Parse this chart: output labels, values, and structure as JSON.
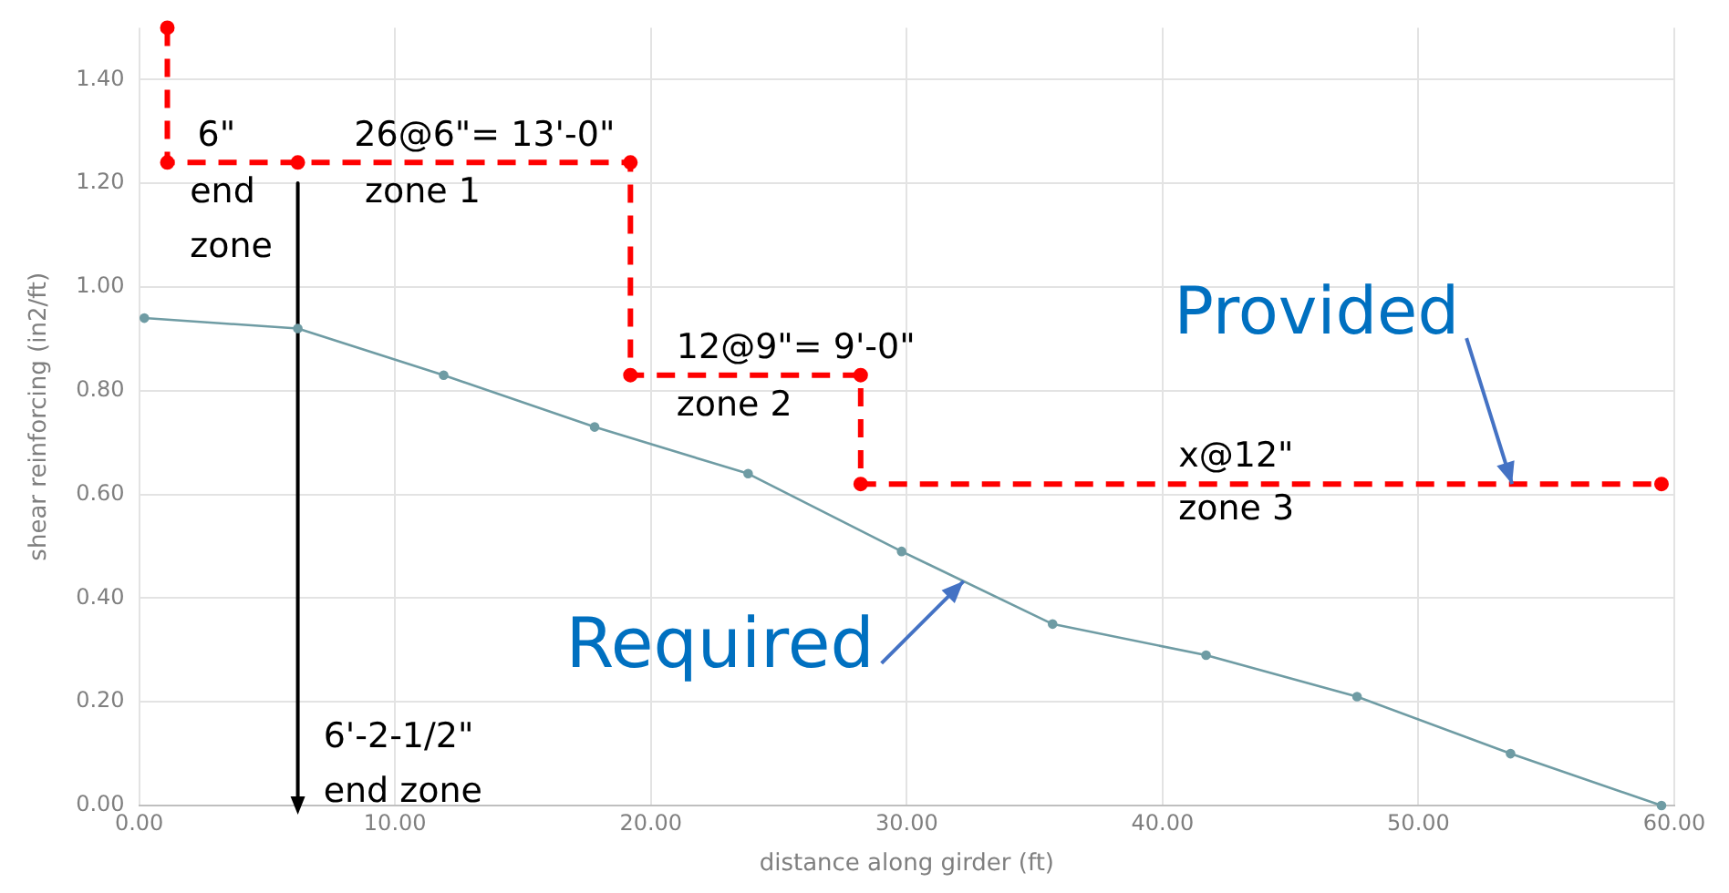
{
  "chart_data": {
    "type": "line",
    "xlabel": "distance along girder (ft)",
    "ylabel": "shear reinforcing (in2/ft)",
    "xlim": [
      0,
      60
    ],
    "xticks": [
      {
        "value": 0,
        "label": "0.00"
      },
      {
        "value": 10,
        "label": "10.00"
      },
      {
        "value": 20,
        "label": "20.00"
      },
      {
        "value": 30,
        "label": "30.00"
      },
      {
        "value": 40,
        "label": "40.00"
      },
      {
        "value": 50,
        "label": "50.00"
      },
      {
        "value": 60,
        "label": "60.00"
      }
    ],
    "ylim": [
      0,
      1.5
    ],
    "yticks": [
      {
        "value": 0,
        "label": "0.00"
      },
      {
        "value": 0.2,
        "label": "0.20"
      },
      {
        "value": 0.4,
        "label": "0.40"
      },
      {
        "value": 0.6,
        "label": "0.60"
      },
      {
        "value": 0.8,
        "label": "0.80"
      },
      {
        "value": 1,
        "label": "1.00"
      },
      {
        "value": 1.2,
        "label": "1.20"
      },
      {
        "value": 1.4,
        "label": "1.40"
      }
    ],
    "grid": true,
    "legend": false,
    "series": [
      {
        "name": "Required",
        "color": "#6f9ca4",
        "marker": "circle",
        "line_style": "solid",
        "x": [
          0.2,
          6.2,
          11.9,
          17.8,
          23.8,
          29.8,
          35.7,
          41.7,
          47.6,
          53.6,
          59.5
        ],
        "values": [
          0.94,
          0.92,
          0.83,
          0.73,
          0.64,
          0.49,
          0.35,
          0.29,
          0.21,
          0.1,
          0
        ]
      },
      {
        "name": "Provided",
        "color": "#ff0000",
        "marker": "circle",
        "line_style": "dashed",
        "x": [
          1.1,
          1.1,
          6.2,
          19.2,
          19.2,
          28.2,
          28.2,
          59.5
        ],
        "values": [
          1.5,
          1.24,
          1.24,
          1.24,
          0.83,
          0.83,
          0.62,
          0.62
        ]
      },
      {
        "color": "#000000",
        "marker": "triangle",
        "line_style": "solid",
        "x": [
          6.2,
          6.2
        ],
        "values": [
          1.2,
          0
        ]
      }
    ],
    "annotations": [
      "6\"",
      "end\nzone",
      "26@6\"= 13'-0\"",
      "zone 1",
      "12@9\"= 9'-0\"",
      "zone 2",
      "x@12\"",
      "zone 3",
      "6'-2-1/2\"\nend zone"
    ]
  }
}
